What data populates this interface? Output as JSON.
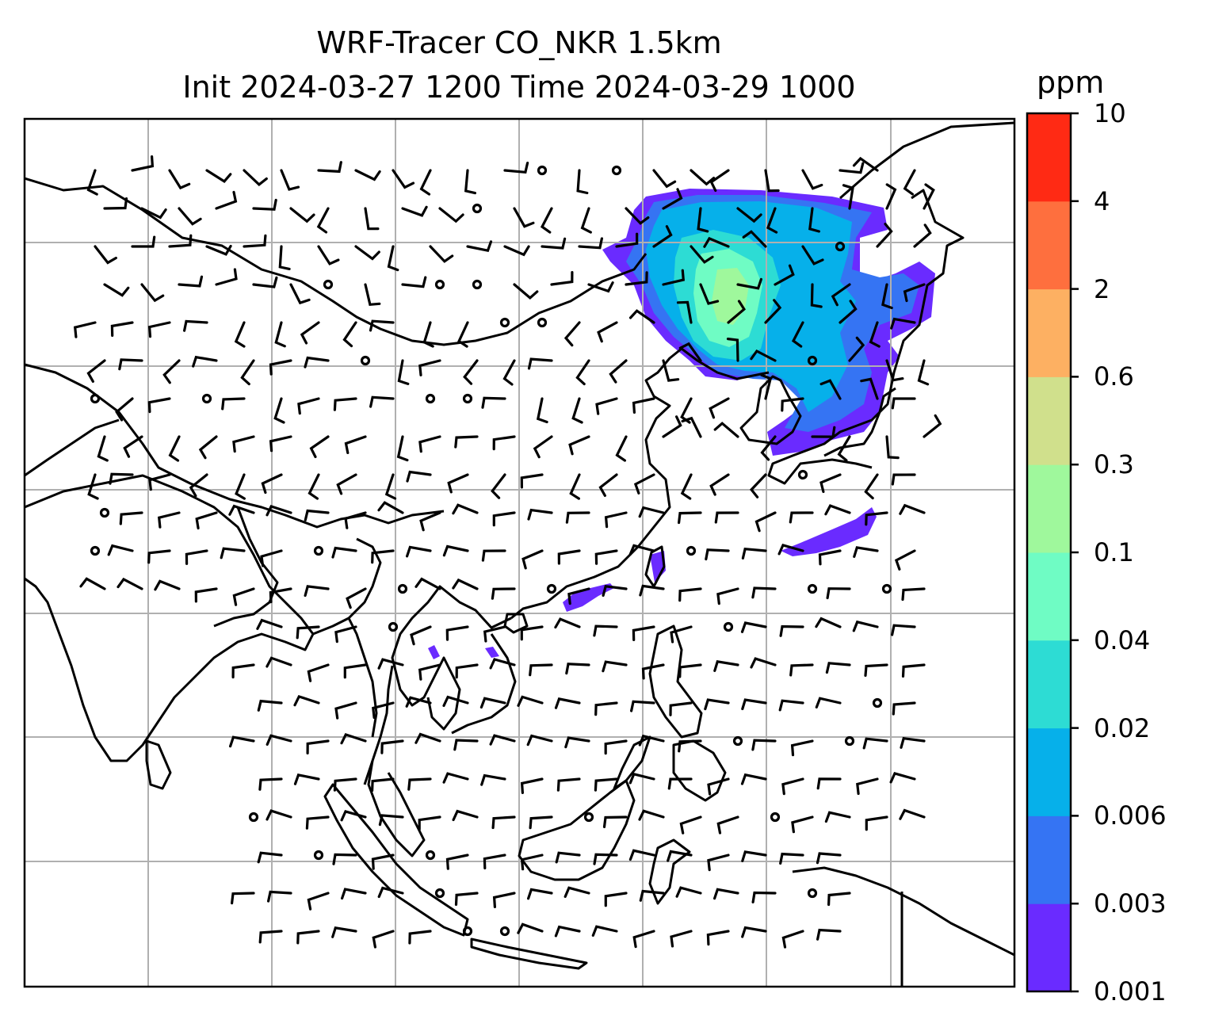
{
  "title": {
    "line1": "WRF-Tracer CO_NKR 1.5km",
    "line2": "Init 2024-03-27 1200 Time 2024-03-29 1000"
  },
  "colorbar": {
    "unit": "ppm",
    "levels": [
      "0.001",
      "0.003",
      "0.006",
      "0.02",
      "0.04",
      "0.1",
      "0.3",
      "0.6",
      "2",
      "4",
      "10"
    ],
    "colors": [
      "#6a2bff",
      "#3574f3",
      "#06b0ea",
      "#2ddcd4",
      "#6ffcc4",
      "#9ff89c",
      "#d0e08c",
      "#fdb062",
      "#fe6f3e",
      "#ff2a14"
    ]
  },
  "map": {
    "gridlines": "on",
    "gridline_color": "#b0b0b0",
    "coastline_color": "#000000",
    "overlays": [
      "coastlines",
      "country-borders",
      "wind-barbs",
      "tracer-concentration"
    ]
  }
}
